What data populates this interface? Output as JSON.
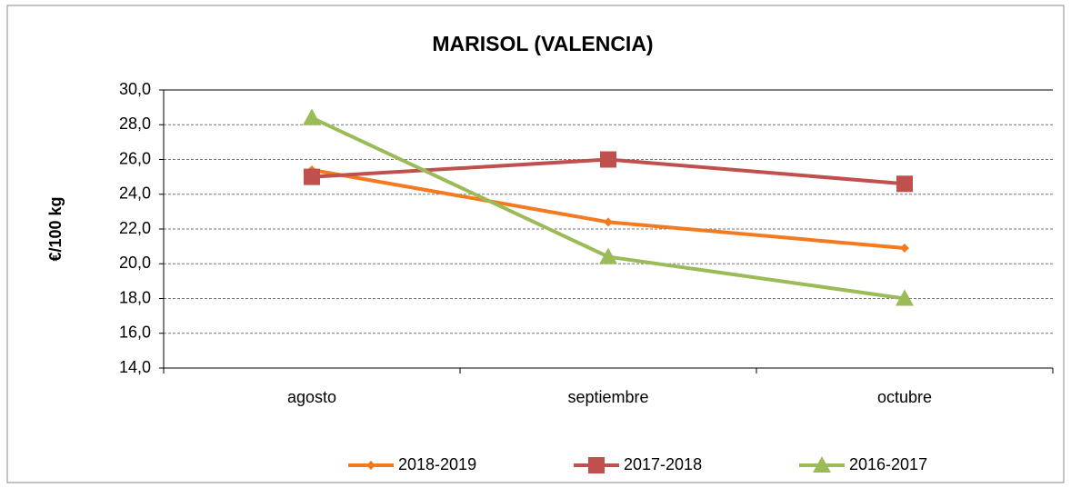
{
  "chart_data": {
    "type": "line",
    "title": "MARISOL (VALENCIA)",
    "y_label": "€/100 kg",
    "categories": [
      "agosto",
      "septiembre",
      "octubre"
    ],
    "series": [
      {
        "name": "2018-2019",
        "color": "#f47a20",
        "marker": "diamond",
        "values": [
          25.4,
          22.4,
          20.9
        ]
      },
      {
        "name": "2017-2018",
        "color": "#c0504d",
        "marker": "square",
        "values": [
          25.0,
          26.0,
          24.6
        ]
      },
      {
        "name": "2016-2017",
        "color": "#9bbb59",
        "marker": "triangle",
        "values": [
          28.4,
          20.4,
          18.0
        ]
      }
    ],
    "ylim": [
      14,
      30
    ],
    "yticks": [
      {
        "value": 14,
        "label": "14,0"
      },
      {
        "value": 16,
        "label": "16,0"
      },
      {
        "value": 18,
        "label": "18,0"
      },
      {
        "value": 20,
        "label": "20,0"
      },
      {
        "value": 22,
        "label": "22,0"
      },
      {
        "value": 24,
        "label": "24,0"
      },
      {
        "value": 26,
        "label": "26,0"
      },
      {
        "value": 28,
        "label": "28,0"
      },
      {
        "value": 30,
        "label": "30,0"
      }
    ],
    "grid": true,
    "legend": "bottom"
  }
}
